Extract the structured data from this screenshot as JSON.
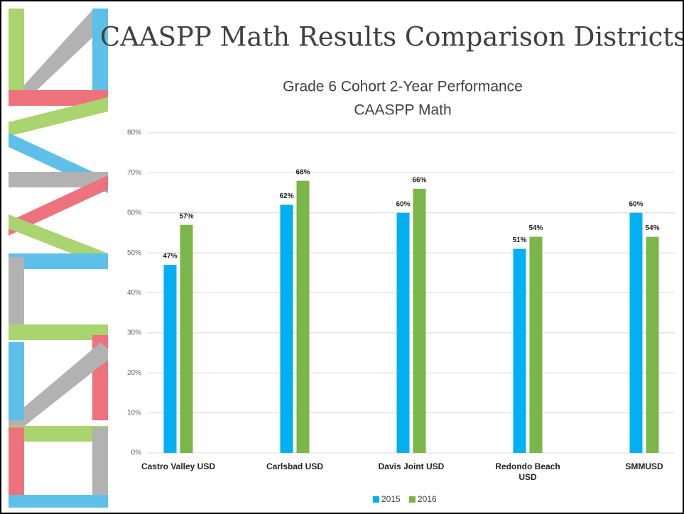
{
  "title": "CAASPP Math Results Comparison Districts",
  "chart_data": {
    "type": "bar",
    "title": "Grade 6 Cohort 2-Year Performance",
    "subtitle": "CAASPP Math",
    "categories": [
      "Castro Valley USD",
      "Carlsbad USD",
      "Davis Joint USD",
      "Redondo Beach USD",
      "SMMUSD"
    ],
    "series": [
      {
        "name": "2015",
        "color": "#00b0f0",
        "values": [
          47,
          62,
          60,
          51,
          60
        ],
        "value_labels": [
          "47%",
          "62%",
          "60%",
          "51%",
          "60%"
        ]
      },
      {
        "name": "2016",
        "color": "#7ab648",
        "values": [
          57,
          68,
          66,
          54,
          54
        ],
        "value_labels": [
          "57%",
          "68%",
          "66%",
          "54%",
          "54%"
        ]
      }
    ],
    "ylim": [
      0,
      80
    ],
    "yticks": [
      {
        "value": 0,
        "label": "0%"
      },
      {
        "value": 10,
        "label": "10%"
      },
      {
        "value": 20,
        "label": "20%"
      },
      {
        "value": 30,
        "label": "30%"
      },
      {
        "value": 40,
        "label": "40%"
      },
      {
        "value": 50,
        "label": "50%"
      },
      {
        "value": 60,
        "label": "60%"
      },
      {
        "value": 70,
        "label": "70%"
      },
      {
        "value": 80,
        "label": "80%"
      }
    ],
    "grid": true,
    "legend": "bottom"
  }
}
